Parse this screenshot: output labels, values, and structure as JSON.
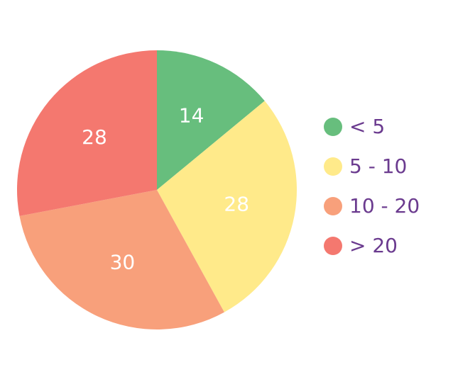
{
  "chart_data": {
    "type": "pie",
    "categories": [
      "< 5",
      "5 - 10",
      "10 - 20",
      "> 20"
    ],
    "values": [
      14,
      28,
      30,
      28
    ],
    "data_labels": [
      "14",
      "28",
      "30",
      "28"
    ],
    "colors": [
      "#67be7d",
      "#ffea8a",
      "#f8a07b",
      "#f4786f"
    ],
    "legend_placement": "right",
    "legend_text_color": "#6b3b8f",
    "label_color": "#ffffff",
    "grid": false
  }
}
